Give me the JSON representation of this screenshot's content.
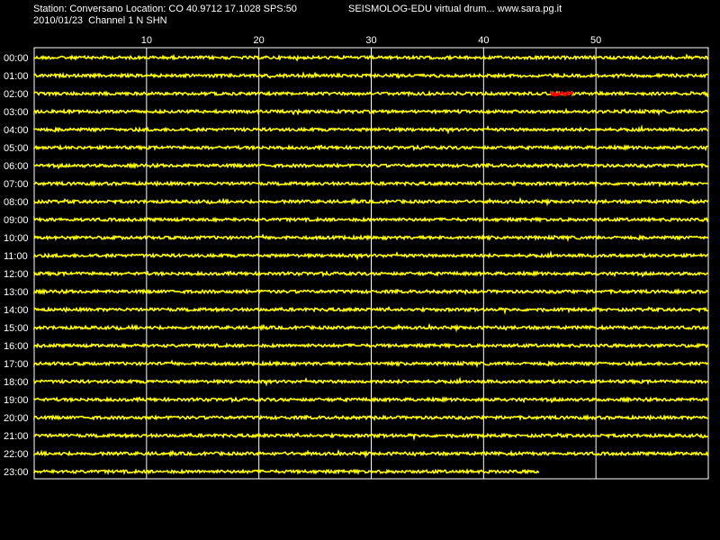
{
  "header": {
    "station_line": "Station: Conversano Location: CO 40.9712 17.1028 SPS:50",
    "date_channel_line": "2010/01/23  Channel 1 N SHN",
    "brand_line": "SEISMOLOG-EDU virtual drum... www.sara.pg.it"
  },
  "colors": {
    "background": "#000000",
    "trace": "#ffff00",
    "event": "#ff0000",
    "grid": "#ffffff",
    "text": "#ffffff"
  },
  "chart_data": {
    "type": "line",
    "x_ticks": [
      "10",
      "20",
      "30",
      "40",
      "50"
    ],
    "xlim": [
      0,
      60
    ],
    "rows": [
      "00:00",
      "01:00",
      "02:00",
      "03:00",
      "04:00",
      "05:00",
      "06:00",
      "07:00",
      "08:00",
      "09:00",
      "10:00",
      "11:00",
      "12:00",
      "13:00",
      "14:00",
      "15:00",
      "16:00",
      "17:00",
      "18:00",
      "19:00",
      "20:00",
      "21:00",
      "22:00",
      "23:00"
    ],
    "last_row_end_minute": 45,
    "event": {
      "row": "02:00",
      "start_minute": 46,
      "end_minute": 48
    },
    "grid": true
  }
}
